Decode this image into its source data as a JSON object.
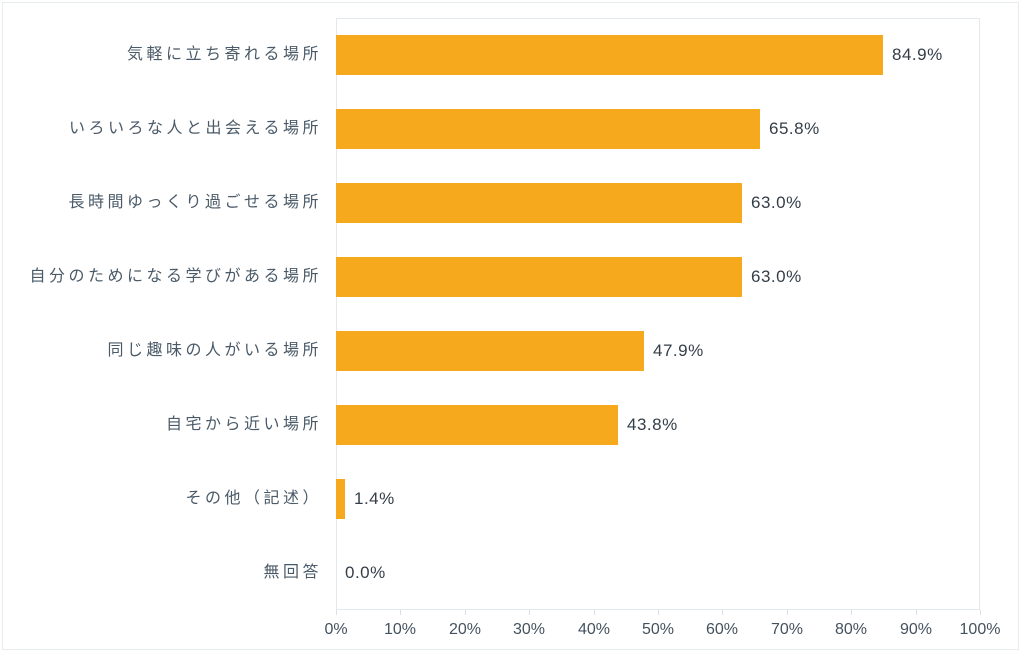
{
  "chart_data": {
    "type": "bar",
    "orientation": "horizontal",
    "title": "",
    "categories": [
      "気軽に立ち寄れる場所",
      "いろいろな人と出会える場所",
      "長時間ゆっくり過ごせる場所",
      "自分のためになる学びがある場所",
      "同じ趣味の人がいる場所",
      "自宅から近い場所",
      "その他（記述）",
      "無回答"
    ],
    "values": [
      84.9,
      65.8,
      63.0,
      63.0,
      47.9,
      43.8,
      1.4,
      0.0
    ],
    "value_labels": [
      "84.9%",
      "65.8%",
      "63.0%",
      "63.0%",
      "47.9%",
      "43.8%",
      "1.4%",
      "0.0%"
    ],
    "x_ticks": [
      "0%",
      "10%",
      "20%",
      "30%",
      "40%",
      "50%",
      "60%",
      "70%",
      "80%",
      "90%",
      "100%"
    ],
    "xlim": [
      0,
      100
    ],
    "xlabel": "",
    "ylabel": "",
    "grid": false,
    "legend": false
  },
  "style": {
    "bar_color": "#f7a91e",
    "category_color": "#4a5a68",
    "value_color": "#333e48",
    "axis_color": "#44525f",
    "border_color": "#e3eaed",
    "frame_color": "#e7edef",
    "tick_color": "#d9e1e5"
  }
}
